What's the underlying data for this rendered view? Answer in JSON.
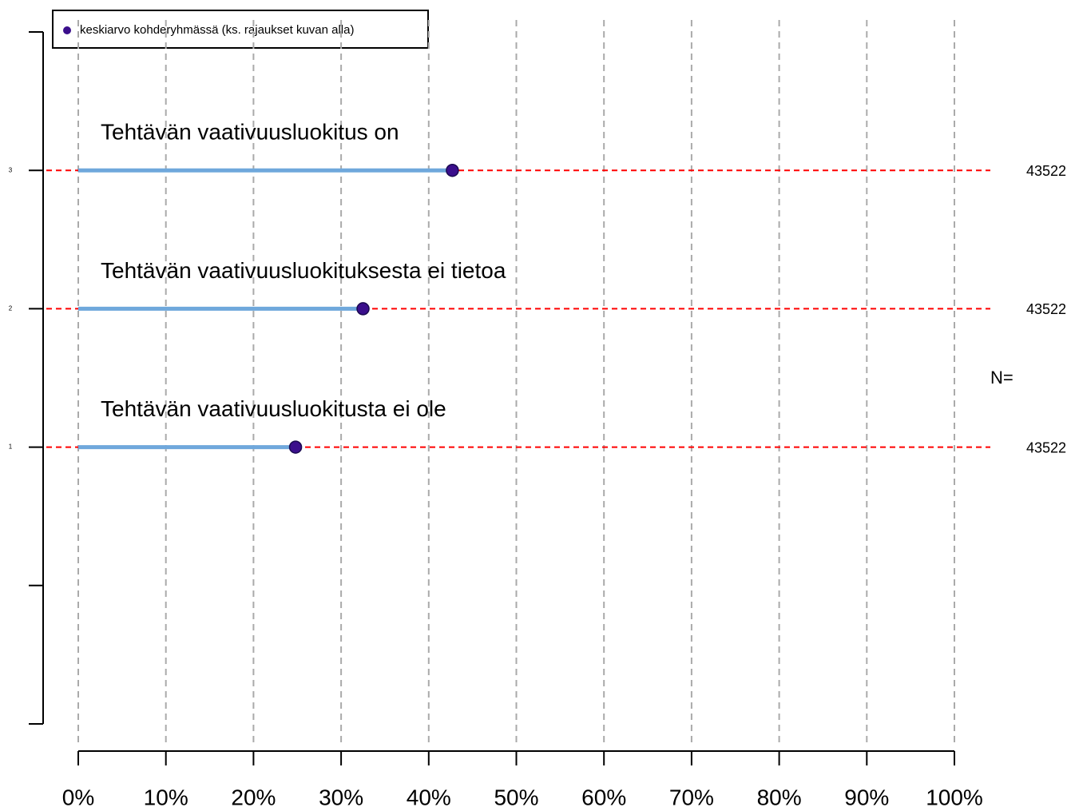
{
  "chart_data": {
    "type": "dot",
    "legend": "keskiarvo kohderyhmässä (ks. rajaukset kuvan alla)",
    "categories": [
      "Tehtävän vaativuusluokitus on",
      "Tehtävän vaativuusluokituksesta ei tietoa",
      "Tehtävän vaativuusluokitusta ei ole"
    ],
    "y": [
      3,
      2,
      1
    ],
    "values": [
      42.7,
      32.5,
      24.8
    ],
    "n_label": "N=",
    "n": [
      43522,
      43522,
      43522
    ],
    "xlim": [
      0,
      100
    ],
    "xticks": [
      {
        "value": 0,
        "label": "0%"
      },
      {
        "value": 10,
        "label": "10%"
      },
      {
        "value": 20,
        "label": "20%"
      },
      {
        "value": 30,
        "label": "30%"
      },
      {
        "value": 40,
        "label": "40%"
      },
      {
        "value": 50,
        "label": "50%"
      },
      {
        "value": 60,
        "label": "60%"
      },
      {
        "value": 70,
        "label": "70%"
      },
      {
        "value": 80,
        "label": "80%"
      },
      {
        "value": 90,
        "label": "90%"
      },
      {
        "value": 100,
        "label": "100%"
      }
    ],
    "ylim": [
      -1,
      4
    ],
    "yticks": [
      1,
      2,
      3
    ],
    "yticks_unlabeled": [
      -1,
      0,
      4
    ],
    "point_color": "#3b0f8c",
    "line_color": "#6fa8dc",
    "ref_line_color": "#ff0000",
    "n_color": "#006400",
    "grid": true
  }
}
